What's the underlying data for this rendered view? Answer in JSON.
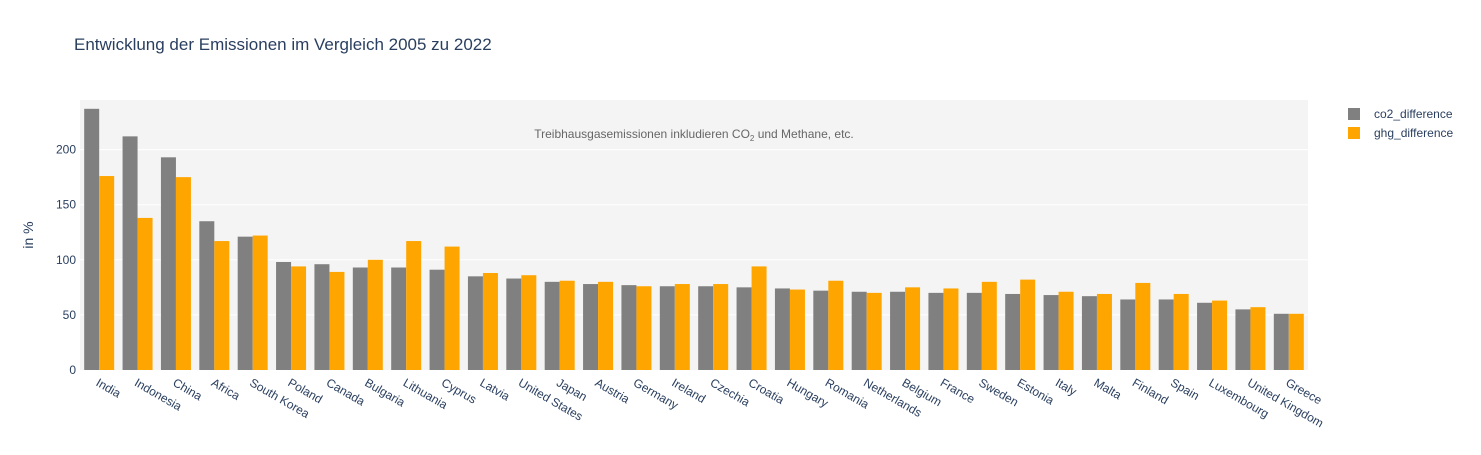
{
  "chart_data": {
    "type": "bar",
    "title": "Entwicklung der Emissionen im Vergleich 2005 zu 2022",
    "ylabel": "in %",
    "xlabel": "",
    "ylim": [
      0,
      245
    ],
    "yticks": [
      0,
      50,
      100,
      150,
      200
    ],
    "grid": true,
    "legend_position": "top-right",
    "annotation": {
      "text_before": "Treibhausgasemissionen inkludieren CO",
      "subscript": "2",
      "text_after": " und Methane, etc."
    },
    "categories": [
      "India",
      "Indonesia",
      "China",
      "Africa",
      "South Korea",
      "Poland",
      "Canada",
      "Bulgaria",
      "Lithuania",
      "Cyprus",
      "Latvia",
      "United States",
      "Japan",
      "Austria",
      "Germany",
      "Ireland",
      "Czechia",
      "Croatia",
      "Hungary",
      "Romania",
      "Netherlands",
      "Belgium",
      "France",
      "Sweden",
      "Estonia",
      "Italy",
      "Malta",
      "Finland",
      "Spain",
      "Luxembourg",
      "United Kingdom",
      "Greece"
    ],
    "series": [
      {
        "name": "co2_difference",
        "color": "#808080",
        "values": [
          237,
          212,
          193,
          135,
          121,
          98,
          96,
          93,
          93,
          91,
          85,
          83,
          80,
          78,
          77,
          76,
          76,
          75,
          74,
          72,
          71,
          71,
          70,
          70,
          69,
          68,
          67,
          64,
          64,
          61,
          55,
          51
        ]
      },
      {
        "name": "ghg_difference",
        "color": "#ffa500",
        "values": [
          176,
          138,
          175,
          117,
          122,
          94,
          89,
          100,
          117,
          112,
          88,
          86,
          81,
          80,
          76,
          78,
          78,
          94,
          73,
          81,
          70,
          75,
          74,
          80,
          82,
          71,
          69,
          79,
          69,
          63,
          57,
          51
        ]
      }
    ]
  }
}
